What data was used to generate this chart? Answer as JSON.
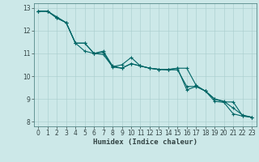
{
  "xlabel": "Humidex (Indice chaleur)",
  "ylabel": "",
  "background_color": "#cce8e8",
  "line_color": "#006666",
  "xlim": [
    -0.5,
    23.5
  ],
  "ylim": [
    7.8,
    13.2
  ],
  "yticks": [
    8,
    9,
    10,
    11,
    12,
    13
  ],
  "xticks": [
    0,
    1,
    2,
    3,
    4,
    5,
    6,
    7,
    8,
    9,
    10,
    11,
    12,
    13,
    14,
    15,
    16,
    17,
    18,
    19,
    20,
    21,
    22,
    23
  ],
  "line1_x": [
    0,
    1,
    2,
    3,
    4,
    5,
    6,
    7,
    8,
    9,
    10,
    11,
    12,
    13,
    14,
    15,
    16,
    17,
    18,
    19,
    20,
    21,
    22,
    23
  ],
  "line1_y": [
    12.85,
    12.85,
    12.6,
    12.35,
    11.45,
    11.45,
    11.0,
    11.1,
    10.45,
    10.35,
    10.55,
    10.45,
    10.35,
    10.3,
    10.3,
    10.35,
    10.35,
    9.6,
    9.35,
    8.9,
    8.85,
    8.35,
    8.25,
    8.2
  ],
  "line2_x": [
    0,
    1,
    2,
    3,
    4,
    5,
    6,
    7,
    8,
    9,
    10,
    11,
    12,
    13,
    14,
    15,
    16,
    17,
    18,
    19,
    20,
    21,
    22,
    23
  ],
  "line2_y": [
    12.85,
    12.85,
    12.55,
    12.35,
    11.45,
    11.1,
    11.0,
    10.95,
    10.42,
    10.5,
    10.82,
    10.45,
    10.35,
    10.3,
    10.28,
    10.28,
    9.55,
    9.55,
    9.35,
    9.0,
    8.87,
    8.87,
    8.27,
    8.2
  ],
  "line3_x": [
    0,
    1,
    2,
    3,
    4,
    5,
    6,
    7,
    8,
    9,
    10,
    11,
    12,
    13,
    14,
    15,
    16,
    17,
    18,
    19,
    20,
    21,
    22,
    23
  ],
  "line3_y": [
    12.85,
    12.85,
    12.55,
    12.35,
    11.45,
    11.45,
    11.0,
    11.05,
    10.4,
    10.35,
    10.55,
    10.45,
    10.35,
    10.3,
    10.28,
    10.35,
    9.4,
    9.55,
    9.35,
    9.0,
    8.9,
    8.6,
    8.3,
    8.2
  ]
}
